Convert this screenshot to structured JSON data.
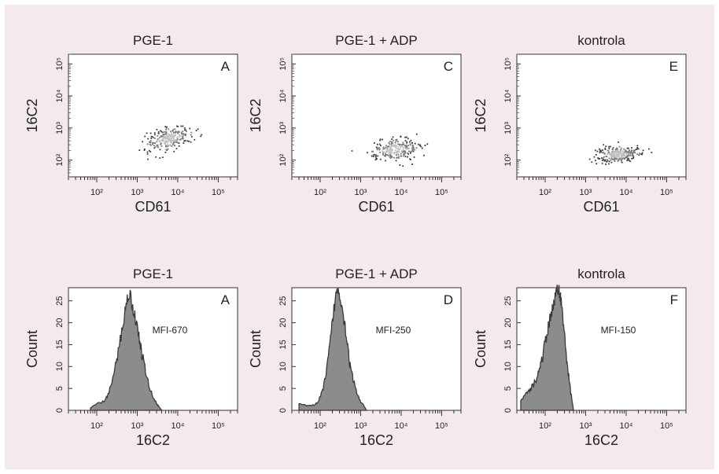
{
  "figure": {
    "background": "#f4e9ed",
    "panel_background": "#ffffff",
    "fill_color": "#8c8c8c",
    "outline_color": "#3a3a3a",
    "dot_color": "#555555"
  },
  "chart_data": [
    {
      "type": "scatter",
      "title": "PGE-1",
      "panel_letter": "A",
      "xlabel": "CD61",
      "ylabel": "16C2",
      "xscale": "log",
      "yscale": "log",
      "xlim": [
        20,
        300000
      ],
      "ylim": [
        30,
        200000
      ],
      "x_ticks": [
        "10²",
        "10³",
        "10⁴",
        "10⁵"
      ],
      "y_ticks": [
        "10²",
        "10³",
        "10⁴",
        "10⁵"
      ],
      "cluster": {
        "x_center": 6000,
        "y_center": 500,
        "x_spread_decades": 0.28,
        "y_spread_decades": 0.22,
        "tilt": 0.6
      }
    },
    {
      "type": "scatter",
      "title": "PGE-1 + ADP",
      "panel_letter": "C",
      "xlabel": "CD61",
      "ylabel": "16C2",
      "xscale": "log",
      "yscale": "log",
      "xlim": [
        20,
        300000
      ],
      "ylim": [
        30,
        200000
      ],
      "x_ticks": [
        "10²",
        "10³",
        "10⁴",
        "10⁵"
      ],
      "y_ticks": [
        "10²",
        "10³",
        "10⁴",
        "10⁵"
      ],
      "cluster": {
        "x_center": 6500,
        "y_center": 220,
        "x_spread_decades": 0.3,
        "y_spread_decades": 0.2,
        "tilt": 0.35
      }
    },
    {
      "type": "scatter",
      "title": "kontrola",
      "panel_letter": "E",
      "xlabel": "CD61",
      "ylabel": "16C2",
      "xscale": "log",
      "yscale": "log",
      "xlim": [
        20,
        300000
      ],
      "ylim": [
        30,
        200000
      ],
      "x_ticks": [
        "10²",
        "10³",
        "10⁴",
        "10⁵"
      ],
      "y_ticks": [
        "10²",
        "10³",
        "10⁴",
        "10⁵"
      ],
      "cluster": {
        "x_center": 6000,
        "y_center": 160,
        "x_spread_decades": 0.26,
        "y_spread_decades": 0.16,
        "tilt": 0.2
      }
    },
    {
      "type": "area",
      "title": "PGE-1",
      "panel_letter": "A",
      "annotation": "MFI-670",
      "xlabel": "16C2",
      "ylabel": "Count",
      "xscale": "log",
      "xlim": [
        20,
        300000
      ],
      "ylim": [
        0,
        28
      ],
      "x_ticks": [
        "10²",
        "10³",
        "10⁴",
        "10⁵"
      ],
      "y_ticks": [
        0,
        5,
        10,
        15,
        20,
        25
      ],
      "x": [
        70,
        100,
        150,
        200,
        280,
        350,
        450,
        550,
        650,
        750,
        900,
        1100,
        1300,
        1600,
        2000,
        2500,
        3000,
        3500,
        4000
      ],
      "values": [
        0.5,
        1.5,
        2,
        4,
        9,
        14,
        20,
        25,
        27,
        24,
        21,
        17,
        13,
        9,
        5,
        3,
        1.5,
        0.8,
        0
      ]
    },
    {
      "type": "area",
      "title": "PGE-1 + ADP",
      "panel_letter": "D",
      "annotation": "MFI-250",
      "xlabel": "16C2",
      "ylabel": "Count",
      "xscale": "log",
      "xlim": [
        20,
        300000
      ],
      "ylim": [
        0,
        28
      ],
      "x_ticks": [
        "10²",
        "10³",
        "10⁴",
        "10⁵"
      ],
      "y_ticks": [
        0,
        5,
        10,
        15,
        20,
        25
      ],
      "x": [
        30,
        50,
        70,
        90,
        110,
        140,
        170,
        200,
        240,
        280,
        330,
        400,
        480,
        550,
        650,
        800,
        1000,
        1200,
        1400
      ],
      "values": [
        1.5,
        1,
        1.2,
        2,
        4,
        8,
        14,
        20,
        26,
        28,
        25,
        20,
        15,
        10,
        7,
        4,
        2,
        1,
        0
      ]
    },
    {
      "type": "area",
      "title": "kontrola",
      "panel_letter": "F",
      "annotation": "MFI-150",
      "xlabel": "16C2",
      "ylabel": "Count",
      "xscale": "log",
      "xlim": [
        20,
        300000
      ],
      "ylim": [
        0,
        28
      ],
      "x_ticks": [
        "10²",
        "10³",
        "10⁴",
        "10⁵"
      ],
      "y_ticks": [
        0,
        5,
        10,
        15,
        20,
        25
      ],
      "x": [
        25,
        35,
        45,
        60,
        75,
        90,
        110,
        130,
        150,
        170,
        190,
        210,
        240,
        270,
        300,
        350,
        400,
        450,
        500
      ],
      "values": [
        2,
        4,
        5,
        7,
        10,
        13,
        17,
        21,
        23,
        25,
        27,
        28,
        26,
        22,
        17,
        11,
        6,
        3,
        0
      ]
    }
  ]
}
